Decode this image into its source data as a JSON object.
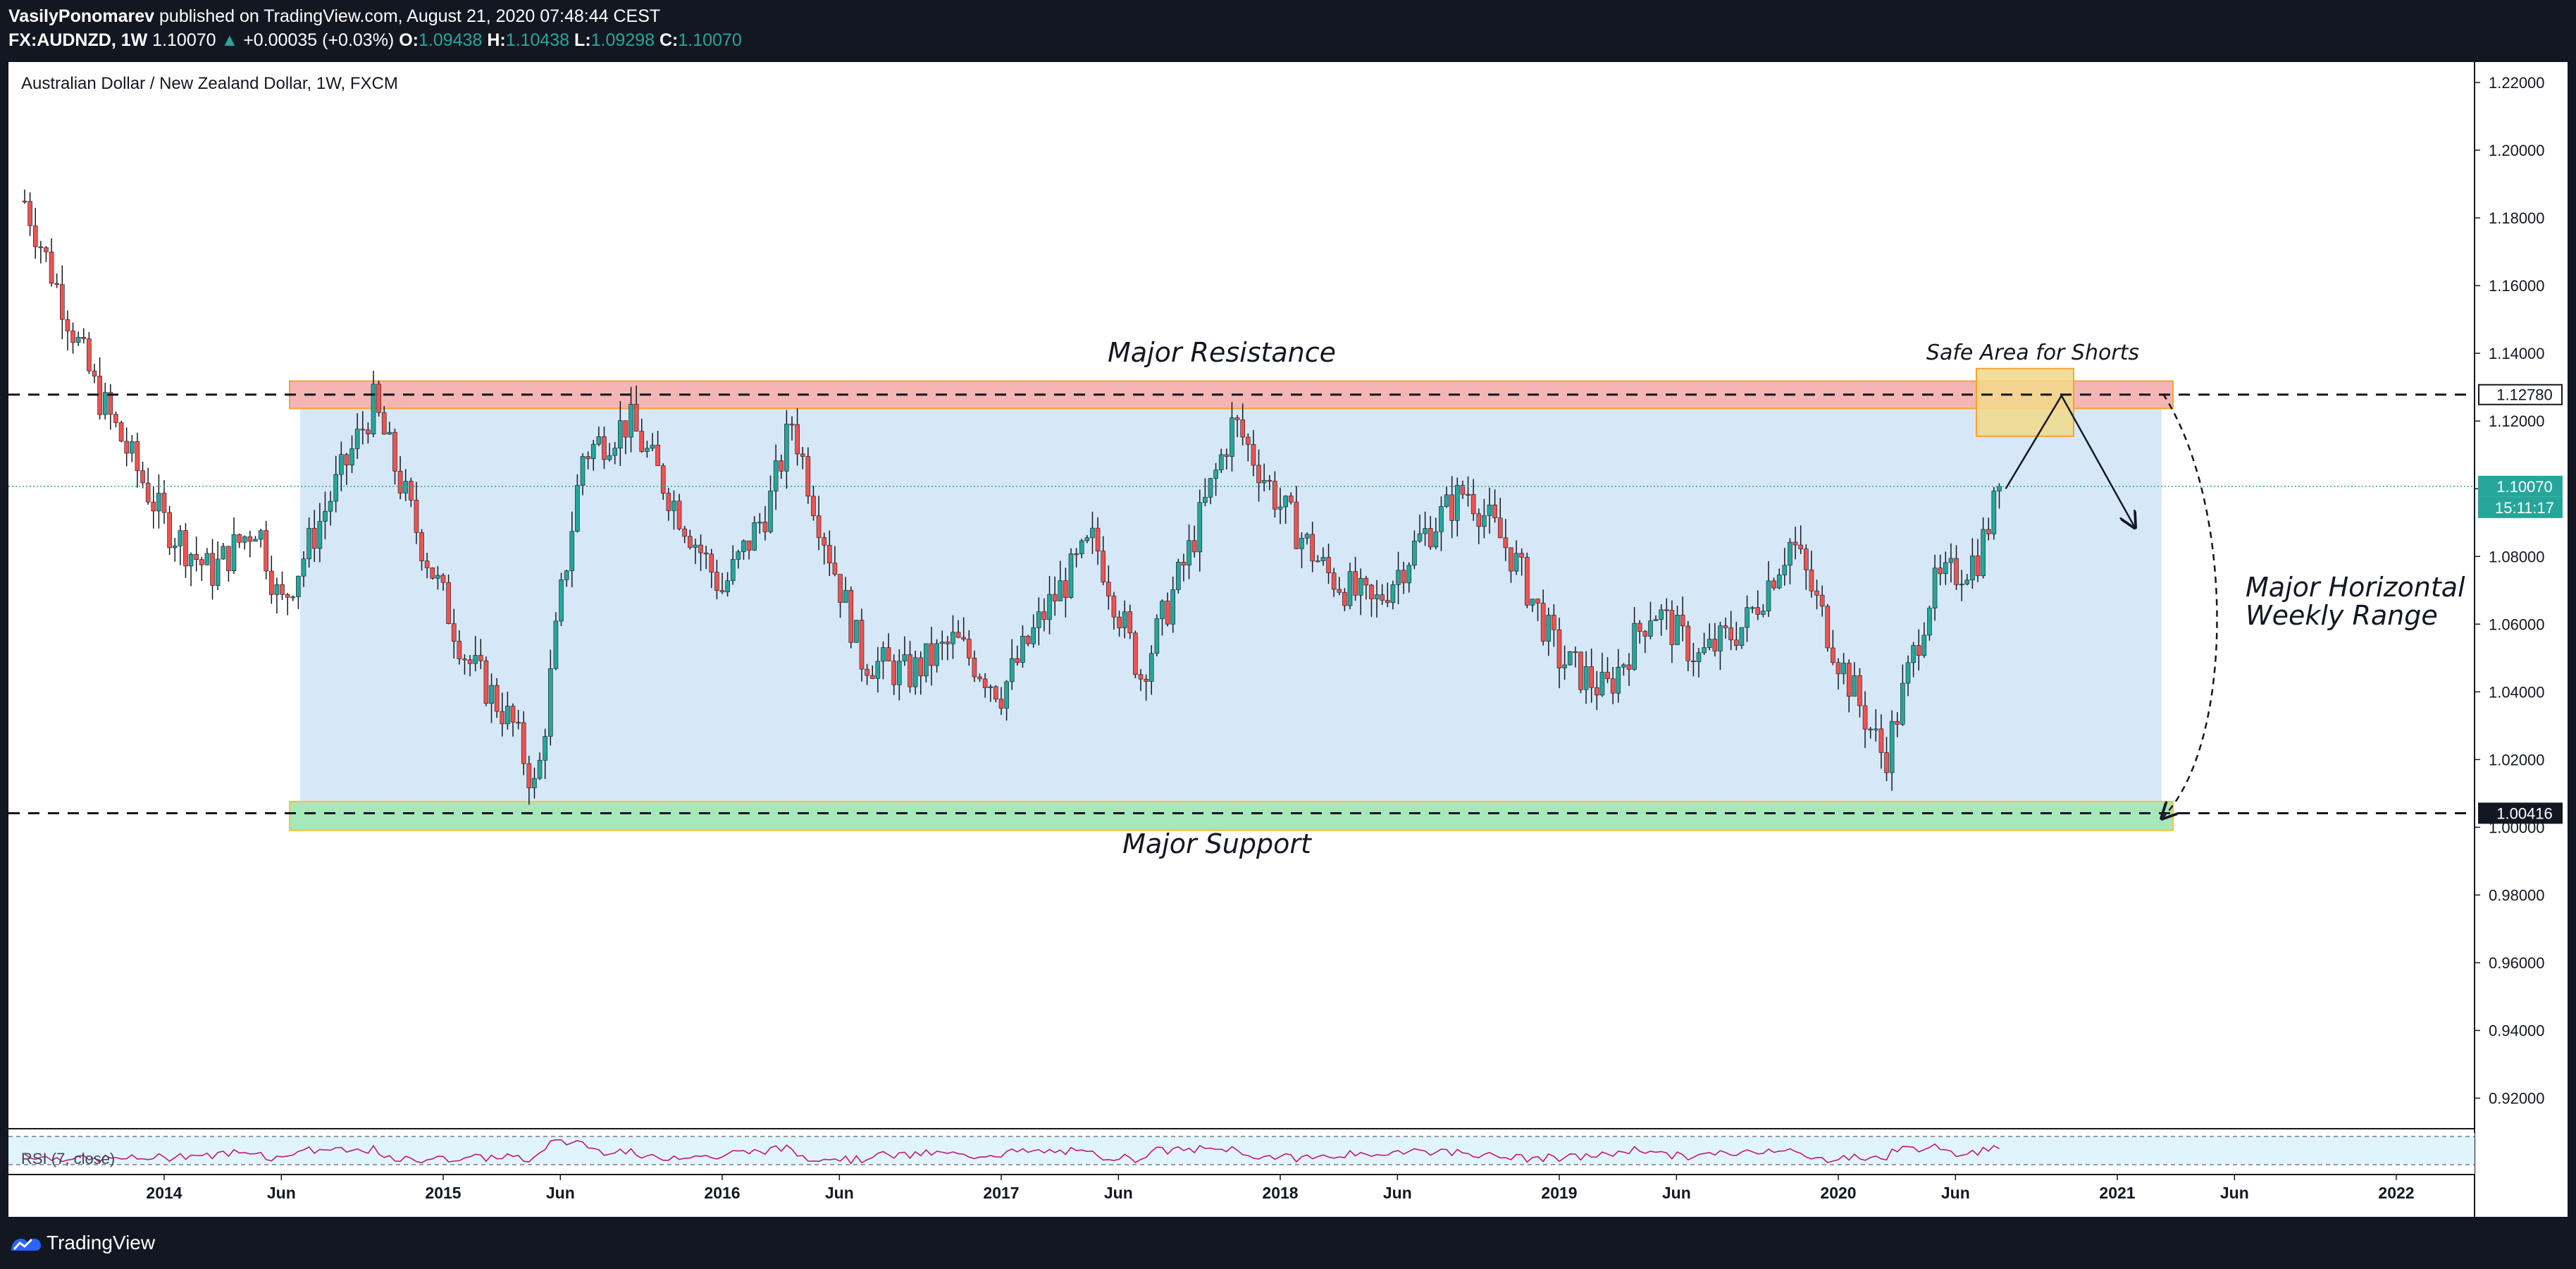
{
  "header": {
    "author": "VasilyPonomarev",
    "published_text": "published on TradingView.com, August 21, 2020 07:48:44 CEST",
    "symbol": "FX:AUDNZD, 1W",
    "price": "1.10070",
    "up_glyph": "▲",
    "change": "+0.00035 (+0.03%)",
    "ohlc": [
      {
        "key": "O:",
        "value": "1.09438"
      },
      {
        "key": "H:",
        "value": "1.10438"
      },
      {
        "key": "L:",
        "value": "1.09298"
      },
      {
        "key": "C:",
        "value": "1.10070"
      }
    ]
  },
  "chart_title": "Australian Dollar / New Zealand Dollar, 1W, FXCM",
  "annotations": {
    "resistance": "Major Resistance",
    "support": "Major Support",
    "safe_area": "Safe Area for Shorts",
    "range_line1": "Major Horizontal",
    "range_line2": "Weekly Range"
  },
  "price_tags": {
    "resistance": "1.12780",
    "current": "1.10070",
    "countdown": "15:11:17",
    "support": "1.00416"
  },
  "rsi_label": "RSI (7, close)",
  "footer": {
    "brand": "TradingView"
  },
  "colors": {
    "bull": "#26a69a",
    "bear": "#ef5350",
    "range_fill": "#d6e8f8",
    "resistance_fill": "#f3b6b4",
    "support_fill": "#a6e8b8",
    "safe_fill": "#f1d98a",
    "rsi_line": "#c2187f"
  },
  "chart_data": {
    "type": "candlestick",
    "title": "Australian Dollar / New Zealand Dollar, 1W, FXCM",
    "y_ticks": [
      "1.22000",
      "1.20000",
      "1.18000",
      "1.16000",
      "1.14000",
      "1.12000",
      "1.10000",
      "1.08000",
      "1.06000",
      "1.04000",
      "1.02000",
      "1.00000",
      "0.98000",
      "0.96000",
      "0.94000",
      "0.92000"
    ],
    "x_ticks": [
      "2014",
      "Jun",
      "2015",
      "Jun",
      "2016",
      "Jun",
      "2017",
      "Jun",
      "2018",
      "Jun",
      "2019",
      "Jun",
      "2020",
      "Jun",
      "2021",
      "Jun",
      "2022"
    ],
    "ylim": [
      0.905,
      1.228
    ],
    "levels": {
      "resistance": 1.1278,
      "support": 1.00416,
      "current": 1.1007
    },
    "zones": {
      "resistance_band": [
        1.1237,
        1.1318
      ],
      "support_band": [
        0.9991,
        1.0076
      ],
      "range_box": [
        1.0076,
        1.1237
      ],
      "safe_area": [
        1.1155,
        1.1355
      ]
    },
    "series": [
      {
        "name": "AUDNZD weekly close (approx.)",
        "key_closes": [
          [
            "2013-07",
            1.185
          ],
          [
            "2013-10",
            1.13
          ],
          [
            "2014-01",
            1.09
          ],
          [
            "2014-03",
            1.075
          ],
          [
            "2014-05",
            1.09
          ],
          [
            "2014-06",
            1.065
          ],
          [
            "2014-08",
            1.095
          ],
          [
            "2014-10",
            1.125
          ],
          [
            "2014-12",
            1.085
          ],
          [
            "2015-02",
            1.05
          ],
          [
            "2015-04",
            1.03
          ],
          [
            "2015-05",
            1.01
          ],
          [
            "2015-06",
            1.065
          ],
          [
            "2015-07",
            1.11
          ],
          [
            "2015-09",
            1.12
          ],
          [
            "2015-11",
            1.095
          ],
          [
            "2016-01",
            1.07
          ],
          [
            "2016-03",
            1.095
          ],
          [
            "2016-04",
            1.12
          ],
          [
            "2016-05",
            1.095
          ],
          [
            "2016-07",
            1.05
          ],
          [
            "2016-09",
            1.045
          ],
          [
            "2016-11",
            1.055
          ],
          [
            "2017-01",
            1.04
          ],
          [
            "2017-03",
            1.065
          ],
          [
            "2017-05",
            1.085
          ],
          [
            "2017-07",
            1.045
          ],
          [
            "2017-09",
            1.08
          ],
          [
            "2017-11",
            1.12
          ],
          [
            "2018-01",
            1.095
          ],
          [
            "2018-03",
            1.075
          ],
          [
            "2018-05",
            1.065
          ],
          [
            "2018-07",
            1.085
          ],
          [
            "2018-09",
            1.1
          ],
          [
            "2018-11",
            1.08
          ],
          [
            "2019-01",
            1.05
          ],
          [
            "2019-03",
            1.04
          ],
          [
            "2019-05",
            1.065
          ],
          [
            "2019-07",
            1.05
          ],
          [
            "2019-09",
            1.06
          ],
          [
            "2019-11",
            1.085
          ],
          [
            "2020-01",
            1.05
          ],
          [
            "2020-03",
            1.02
          ],
          [
            "2020-05",
            1.07
          ],
          [
            "2020-07",
            1.08
          ],
          [
            "2020-08",
            1.1007
          ]
        ]
      },
      {
        "name": "RSI (7, close)",
        "range": [
          0,
          100
        ]
      }
    ]
  }
}
